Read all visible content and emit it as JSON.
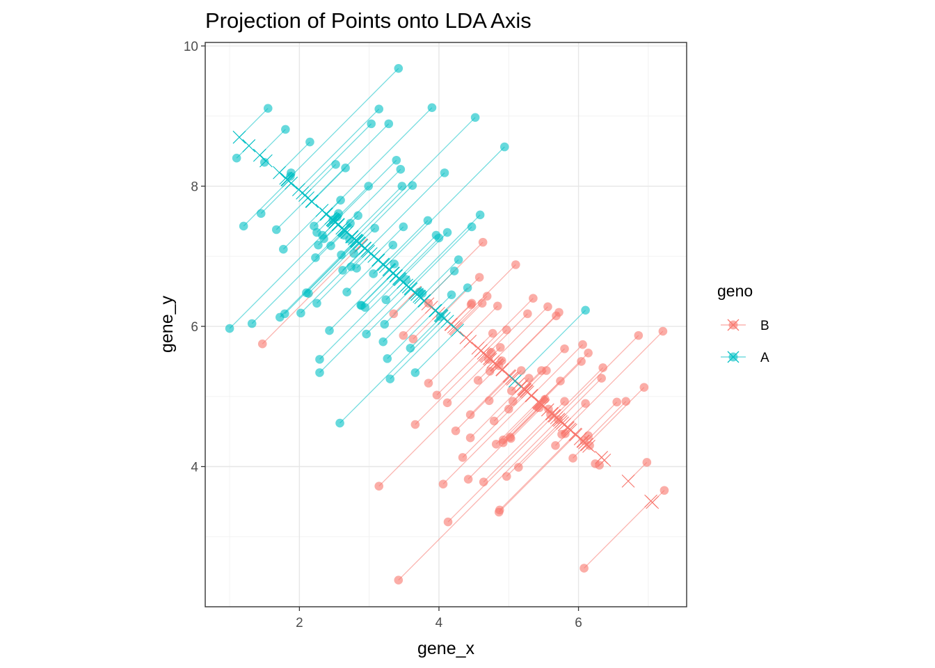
{
  "chart_data": {
    "type": "scatter",
    "title": "Projection of Points onto LDA Axis",
    "xlabel": "gene_x",
    "ylabel": "gene_y",
    "xlim": [
      0.65,
      7.55
    ],
    "ylim": [
      2.0,
      10.05
    ],
    "xticks": [
      2,
      4,
      6
    ],
    "yticks": [
      4,
      6,
      8,
      10
    ],
    "grid": true,
    "legend": {
      "title": "geno",
      "position": "right",
      "entries": [
        "B",
        "A"
      ]
    },
    "lda_axis": {
      "slope": -0.88,
      "intercept": 9.7
    },
    "series": [
      {
        "name": "B",
        "color": "#F8766D",
        "points": [
          [
            1.47,
            5.75
          ],
          [
            3.35,
            6.18
          ],
          [
            3.49,
            5.87
          ],
          [
            3.63,
            5.82
          ],
          [
            3.85,
            5.19
          ],
          [
            3.97,
            5.02
          ],
          [
            4.12,
            4.91
          ],
          [
            4.24,
            4.51
          ],
          [
            4.34,
            4.13
          ],
          [
            4.42,
            3.82
          ],
          [
            4.45,
            4.41
          ],
          [
            4.47,
            6.33
          ],
          [
            4.62,
            6.33
          ],
          [
            4.69,
            6.43
          ],
          [
            4.71,
            5.53
          ],
          [
            4.73,
            5.36
          ],
          [
            4.75,
            5.63
          ],
          [
            4.77,
            5.9
          ],
          [
            4.79,
            4.65
          ],
          [
            4.84,
            6.29
          ],
          [
            4.86,
            5.44
          ],
          [
            4.88,
            5.7
          ],
          [
            4.9,
            5.51
          ],
          [
            4.92,
            4.34
          ],
          [
            4.97,
            5.95
          ],
          [
            5.0,
            4.82
          ],
          [
            5.02,
            4.42
          ],
          [
            5.04,
            5.08
          ],
          [
            5.06,
            4.93
          ],
          [
            5.1,
            6.88
          ],
          [
            5.14,
            3.99
          ],
          [
            5.18,
            5.37
          ],
          [
            5.27,
            6.18
          ],
          [
            5.29,
            5.26
          ],
          [
            5.35,
            6.4
          ],
          [
            5.44,
            4.84
          ],
          [
            5.52,
            4.96
          ],
          [
            5.54,
            5.37
          ],
          [
            5.56,
            6.28
          ],
          [
            5.6,
            4.74
          ],
          [
            5.68,
            6.15
          ],
          [
            5.72,
            6.2
          ],
          [
            5.74,
            5.22
          ],
          [
            5.76,
            4.46
          ],
          [
            5.8,
            4.93
          ],
          [
            5.92,
            4.12
          ],
          [
            6.04,
            5.5
          ],
          [
            6.06,
            5.74
          ],
          [
            6.1,
            4.9
          ],
          [
            6.14,
            4.44
          ],
          [
            6.24,
            4.04
          ],
          [
            6.35,
            5.41
          ],
          [
            6.55,
            4.92
          ],
          [
            6.68,
            4.93
          ],
          [
            6.86,
            5.87
          ],
          [
            6.94,
            5.13
          ],
          [
            6.98,
            4.06
          ],
          [
            7.21,
            5.93
          ],
          [
            7.23,
            3.66
          ],
          [
            3.14,
            3.72
          ],
          [
            3.42,
            2.38
          ],
          [
            3.66,
            4.6
          ],
          [
            4.06,
            3.75
          ],
          [
            4.13,
            3.21
          ],
          [
            4.46,
            6.31
          ],
          [
            4.63,
            7.2
          ],
          [
            4.58,
            6.7
          ],
          [
            4.86,
            3.35
          ],
          [
            4.87,
            3.38
          ],
          [
            4.97,
            3.86
          ],
          [
            5.03,
            4.4
          ],
          [
            5.47,
            5.37
          ],
          [
            5.57,
            4.82
          ],
          [
            5.67,
            4.3
          ],
          [
            5.8,
            5.68
          ],
          [
            6.08,
            2.55
          ],
          [
            6.08,
            4.37
          ],
          [
            6.14,
            5.62
          ],
          [
            6.33,
            5.26
          ],
          [
            4.45,
            4.74
          ],
          [
            4.56,
            5.23
          ],
          [
            4.64,
            3.78
          ],
          [
            4.72,
            4.94
          ],
          [
            4.82,
            4.32
          ],
          [
            4.92,
            4.38
          ],
          [
            5.71,
            4.67
          ],
          [
            5.81,
            4.47
          ],
          [
            6.16,
            4.3
          ],
          [
            6.3,
            4.02
          ],
          [
            3.85,
            6.33
          ]
        ]
      },
      {
        "name": "A",
        "color": "#00BFC4",
        "points": [
          [
            1.0,
            5.97
          ],
          [
            1.1,
            8.4
          ],
          [
            1.2,
            7.43
          ],
          [
            1.32,
            6.04
          ],
          [
            1.45,
            7.61
          ],
          [
            1.5,
            8.34
          ],
          [
            1.55,
            9.11
          ],
          [
            1.67,
            7.38
          ],
          [
            1.72,
            6.13
          ],
          [
            1.77,
            7.1
          ],
          [
            1.79,
            6.18
          ],
          [
            1.8,
            8.81
          ],
          [
            1.87,
            8.14
          ],
          [
            1.88,
            8.19
          ],
          [
            2.02,
            6.19
          ],
          [
            2.1,
            6.48
          ],
          [
            2.15,
            8.63
          ],
          [
            2.21,
            7.43
          ],
          [
            2.23,
            6.98
          ],
          [
            2.25,
            7.34
          ],
          [
            2.27,
            7.16
          ],
          [
            2.29,
            5.53
          ],
          [
            2.29,
            5.34
          ],
          [
            2.33,
            7.3
          ],
          [
            2.43,
            5.94
          ],
          [
            2.45,
            7.15
          ],
          [
            2.48,
            7.52
          ],
          [
            2.52,
            8.31
          ],
          [
            2.54,
            7.56
          ],
          [
            2.56,
            7.61
          ],
          [
            2.58,
            4.62
          ],
          [
            2.6,
            7.02
          ],
          [
            2.62,
            6.8
          ],
          [
            2.64,
            7.3
          ],
          [
            2.66,
            8.26
          ],
          [
            2.68,
            6.49
          ],
          [
            2.72,
            7.24
          ],
          [
            2.74,
            6.85
          ],
          [
            2.78,
            7.04
          ],
          [
            2.82,
            6.83
          ],
          [
            2.84,
            7.58
          ],
          [
            2.88,
            6.3
          ],
          [
            2.94,
            6.27
          ],
          [
            2.96,
            5.89
          ],
          [
            2.99,
            8.0
          ],
          [
            3.03,
            8.89
          ],
          [
            3.06,
            6.75
          ],
          [
            3.08,
            7.4
          ],
          [
            3.14,
            9.1
          ],
          [
            3.2,
            5.78
          ],
          [
            3.22,
            6.03
          ],
          [
            3.24,
            6.38
          ],
          [
            3.26,
            5.54
          ],
          [
            3.28,
            8.89
          ],
          [
            3.3,
            5.25
          ],
          [
            3.34,
            7.16
          ],
          [
            3.36,
            6.89
          ],
          [
            3.39,
            8.37
          ],
          [
            3.42,
            9.68
          ],
          [
            3.45,
            8.24
          ],
          [
            3.47,
            8.0
          ],
          [
            3.49,
            7.42
          ],
          [
            3.53,
            6.67
          ],
          [
            3.59,
            5.69
          ],
          [
            3.62,
            8.01
          ],
          [
            3.66,
            5.34
          ],
          [
            3.72,
            6.49
          ],
          [
            3.76,
            6.47
          ],
          [
            3.84,
            7.51
          ],
          [
            3.9,
            9.12
          ],
          [
            3.96,
            7.3
          ],
          [
            4.0,
            7.26
          ],
          [
            4.02,
            6.14
          ],
          [
            4.08,
            8.19
          ],
          [
            4.12,
            7.34
          ],
          [
            4.18,
            6.45
          ],
          [
            4.22,
            6.79
          ],
          [
            4.28,
            6.95
          ],
          [
            4.41,
            6.55
          ],
          [
            4.47,
            7.42
          ],
          [
            4.52,
            8.98
          ],
          [
            4.59,
            7.59
          ],
          [
            4.94,
            8.56
          ],
          [
            6.1,
            6.23
          ],
          [
            2.13,
            6.47
          ],
          [
            2.25,
            6.33
          ],
          [
            2.35,
            7.25
          ],
          [
            2.59,
            7.8
          ],
          [
            2.73,
            7.47
          ],
          [
            2.89,
            6.3
          ]
        ]
      }
    ]
  }
}
